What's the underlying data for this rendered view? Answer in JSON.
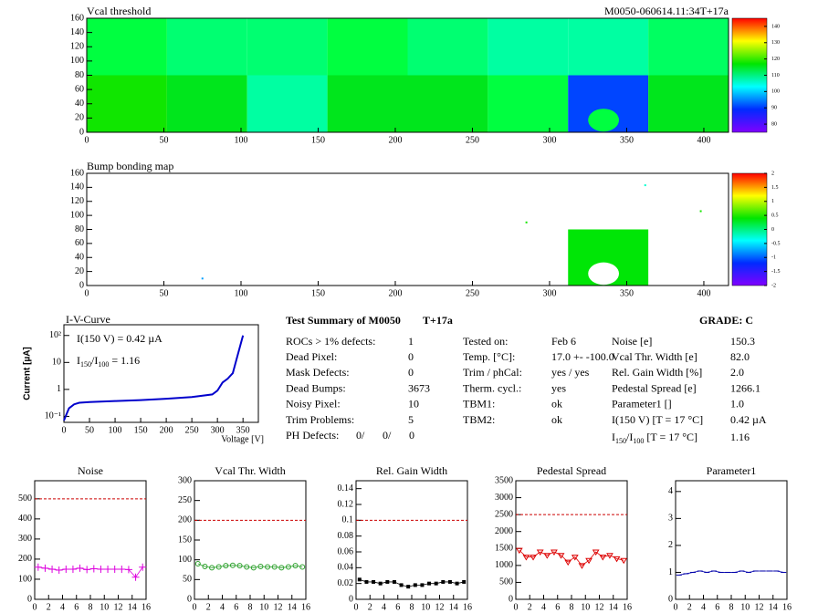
{
  "chart_data": [
    {
      "type": "heatmap",
      "title": "Vcal threshold",
      "subtitle": "M0050-060614.11:34T+17a",
      "xlim": [
        0,
        416
      ],
      "ylim": [
        0,
        160
      ],
      "xticks": [
        0,
        50,
        100,
        150,
        200,
        250,
        300,
        350,
        400
      ],
      "yticks": [
        0,
        20,
        40,
        60,
        80,
        100,
        120,
        140,
        160
      ],
      "zlim": [
        75,
        145
      ],
      "zticks": [
        80,
        90,
        100,
        110,
        120,
        130,
        140
      ],
      "blocks": [
        {
          "x": [
            0,
            52
          ],
          "y": [
            80,
            160
          ],
          "value": 110
        },
        {
          "x": [
            52,
            104
          ],
          "y": [
            80,
            160
          ],
          "value": 107
        },
        {
          "x": [
            104,
            156
          ],
          "y": [
            80,
            160
          ],
          "value": 107
        },
        {
          "x": [
            156,
            208
          ],
          "y": [
            80,
            160
          ],
          "value": 110
        },
        {
          "x": [
            208,
            260
          ],
          "y": [
            80,
            160
          ],
          "value": 107
        },
        {
          "x": [
            260,
            312
          ],
          "y": [
            80,
            160
          ],
          "value": 104
        },
        {
          "x": [
            312,
            364
          ],
          "y": [
            80,
            160
          ],
          "value": 104
        },
        {
          "x": [
            364,
            416
          ],
          "y": [
            80,
            160
          ],
          "value": 108
        },
        {
          "x": [
            0,
            52
          ],
          "y": [
            0,
            80
          ],
          "value": 115
        },
        {
          "x": [
            52,
            104
          ],
          "y": [
            0,
            80
          ],
          "value": 112
        },
        {
          "x": [
            104,
            156
          ],
          "y": [
            0,
            80
          ],
          "value": 104
        },
        {
          "x": [
            156,
            208
          ],
          "y": [
            0,
            80
          ],
          "value": 112
        },
        {
          "x": [
            208,
            260
          ],
          "y": [
            0,
            80
          ],
          "value": 112
        },
        {
          "x": [
            260,
            312
          ],
          "y": [
            0,
            80
          ],
          "value": 110
        },
        {
          "x": [
            312,
            364
          ],
          "y": [
            0,
            80
          ],
          "value": 87
        },
        {
          "x": [
            364,
            416
          ],
          "y": [
            0,
            80
          ],
          "value": 112
        }
      ],
      "spots": [
        {
          "x": 335,
          "y": 17,
          "r": [
            10,
            16
          ],
          "value": 110
        }
      ],
      "points": []
    },
    {
      "type": "heatmap",
      "title": "Bump bonding map",
      "xlim": [
        0,
        416
      ],
      "ylim": [
        0,
        160
      ],
      "xticks": [
        0,
        50,
        100,
        150,
        200,
        250,
        300,
        350,
        400
      ],
      "yticks": [
        0,
        20,
        40,
        60,
        80,
        100,
        120,
        140,
        160
      ],
      "zlim": [
        -2,
        2
      ],
      "zticks": [
        -2,
        -1.5,
        -1,
        -0.5,
        0,
        0.5,
        1,
        1.5,
        2
      ],
      "blocks": [
        {
          "x": [
            312,
            364
          ],
          "y": [
            0,
            80
          ],
          "value": 0.2
        }
      ],
      "spots": [
        {
          "x": 335,
          "y": 17,
          "r": [
            10,
            16
          ],
          "value": null
        }
      ],
      "points": [
        {
          "x": 75,
          "y": 10,
          "value": -1
        },
        {
          "x": 285,
          "y": 90,
          "value": 0.3
        },
        {
          "x": 362,
          "y": 143,
          "value": -0.5
        },
        {
          "x": 398,
          "y": 106,
          "value": 0.3
        }
      ]
    },
    {
      "type": "line",
      "title": "I-V-Curve",
      "x_label": "Voltage [V]",
      "y_label": "Current [µA]",
      "log_y": true,
      "annotation": "I(150 V) = 0.42 µA",
      "ratio_label": [
        "I",
        "150",
        "/I",
        "100",
        " =  1.16"
      ],
      "xlim": [
        0,
        380
      ],
      "ylim": [
        0.06,
        250
      ],
      "xticks": [
        0,
        50,
        100,
        150,
        200,
        250,
        300,
        350
      ],
      "yticks": [
        {
          "value": 0.1,
          "label": "10⁻¹"
        },
        1,
        10,
        {
          "value": 100,
          "label": "10²"
        }
      ],
      "color": "#0000cc",
      "x": [
        0,
        5,
        10,
        20,
        30,
        50,
        100,
        150,
        200,
        250,
        290,
        300,
        310,
        320,
        330,
        340,
        350
      ],
      "values": [
        0.07,
        0.12,
        0.2,
        0.28,
        0.32,
        0.34,
        0.37,
        0.4,
        0.45,
        0.52,
        0.65,
        0.9,
        1.8,
        2.5,
        4,
        20,
        100
      ]
    },
    {
      "type": "small",
      "title": "Noise",
      "marker": "plus",
      "color": "#dd00dd",
      "threshold": 500,
      "xlim": [
        0,
        16
      ],
      "ylim": [
        0,
        590
      ],
      "xticks": [
        0,
        2,
        4,
        6,
        8,
        10,
        12,
        14,
        16
      ],
      "yticks": [
        0,
        100,
        200,
        300,
        400,
        500
      ],
      "x": [
        0.5,
        1.5,
        2.5,
        3.5,
        4.5,
        5.5,
        6.5,
        7.5,
        8.5,
        9.5,
        10.5,
        11.5,
        12.5,
        13.5,
        14.5,
        15.5
      ],
      "values": [
        160,
        155,
        150,
        145,
        150,
        150,
        155,
        148,
        152,
        150,
        150,
        150,
        150,
        148,
        110,
        160
      ]
    },
    {
      "type": "small",
      "title": "Vcal Thr. Width",
      "marker": "circle",
      "color": "#2ca02c",
      "threshold": 200,
      "xlim": [
        0,
        16
      ],
      "ylim": [
        0,
        300
      ],
      "xticks": [
        0,
        2,
        4,
        6,
        8,
        10,
        12,
        14,
        16
      ],
      "yticks": [
        0,
        50,
        100,
        150,
        200,
        250,
        300
      ],
      "x": [
        0.5,
        1.5,
        2.5,
        3.5,
        4.5,
        5.5,
        6.5,
        7.5,
        8.5,
        9.5,
        10.5,
        11.5,
        12.5,
        13.5,
        14.5,
        15.5
      ],
      "values": [
        90,
        83,
        80,
        82,
        85,
        86,
        85,
        82,
        80,
        83,
        82,
        82,
        80,
        82,
        85,
        82
      ]
    },
    {
      "type": "small",
      "title": "Rel. Gain Width",
      "marker": "square",
      "color": "#000000",
      "threshold": 0.1,
      "xlim": [
        0,
        16
      ],
      "ylim": [
        0,
        0.15
      ],
      "xticks": [
        0,
        2,
        4,
        6,
        8,
        10,
        12,
        14,
        16
      ],
      "yticks": [
        0,
        0.02,
        0.04,
        0.06,
        0.08,
        0.1,
        0.12,
        0.14
      ],
      "x": [
        0.5,
        1.5,
        2.5,
        3.5,
        4.5,
        5.5,
        6.5,
        7.5,
        8.5,
        9.5,
        10.5,
        11.5,
        12.5,
        13.5,
        14.5,
        15.5
      ],
      "values": [
        0.025,
        0.022,
        0.022,
        0.02,
        0.022,
        0.022,
        0.018,
        0.016,
        0.018,
        0.018,
        0.02,
        0.02,
        0.022,
        0.022,
        0.02,
        0.022
      ]
    },
    {
      "type": "small",
      "title": "Pedestal Spread",
      "marker": "triangle",
      "color": "#dd0000",
      "threshold": 2500,
      "xlim": [
        0,
        16
      ],
      "ylim": [
        0,
        3500
      ],
      "xticks": [
        0,
        2,
        4,
        6,
        8,
        10,
        12,
        14,
        16
      ],
      "yticks": [
        0,
        500,
        1000,
        1500,
        2000,
        2500,
        3000,
        3500
      ],
      "x": [
        0.5,
        1.5,
        2.5,
        3.5,
        4.5,
        5.5,
        6.5,
        7.5,
        8.5,
        9.5,
        10.5,
        11.5,
        12.5,
        13.5,
        14.5,
        15.5
      ],
      "values": [
        1450,
        1250,
        1250,
        1400,
        1300,
        1400,
        1300,
        1100,
        1250,
        1000,
        1150,
        1400,
        1250,
        1300,
        1200,
        1150
      ]
    },
    {
      "type": "small",
      "title": "Parameter1",
      "marker": "dash",
      "color": "#0000aa",
      "xlim": [
        0,
        16
      ],
      "ylim": [
        0,
        4.4
      ],
      "xticks": [
        0,
        2,
        4,
        6,
        8,
        10,
        12,
        14,
        16
      ],
      "yticks": [
        0,
        1,
        2,
        3,
        4
      ],
      "x": [
        0.5,
        1.5,
        2.5,
        3.5,
        4.5,
        5.5,
        6.5,
        7.5,
        8.5,
        9.5,
        10.5,
        11.5,
        12.5,
        13.5,
        14.5,
        15.5
      ],
      "values": [
        0.9,
        0.95,
        1.0,
        1.05,
        1.0,
        1.05,
        1.0,
        1.0,
        1.0,
        1.05,
        1.0,
        1.05,
        1.05,
        1.05,
        1.05,
        1.0
      ]
    }
  ],
  "summary": {
    "title": "Test Summary of M0050",
    "tag": "T+17a",
    "grade": "GRADE:  C",
    "col1": [
      [
        "ROCs > 1% defects:",
        "1"
      ],
      [
        "Dead Pixel:",
        "0"
      ],
      [
        "Mask Defects:",
        "0"
      ],
      [
        "Dead Bumps:",
        "3673"
      ],
      [
        "Noisy Pixel:",
        "10"
      ],
      [
        "Trim Problems:",
        "5"
      ]
    ],
    "ph_label": "PH Defects:",
    "ph_values": [
      "0/",
      "0/",
      "0"
    ],
    "ph_colors": [
      "#000000",
      "#dd0000",
      "#0000cc"
    ],
    "col2": [
      [
        "Tested on:",
        "Feb 6"
      ],
      [
        "Temp. [°C]:",
        "17.0 +- -100.0"
      ],
      [
        "Trim / phCal:",
        "yes / yes"
      ],
      [
        "Therm. cycl.:",
        "yes"
      ],
      [
        "TBM1:",
        "ok"
      ],
      [
        "TBM2:",
        "ok"
      ]
    ],
    "col3": [
      [
        "Noise [e]",
        "150.3"
      ],
      [
        "Vcal Thr. Width [e]",
        "82.0"
      ],
      [
        "Rel. Gain Width [%]",
        "2.0"
      ],
      [
        "Pedestal Spread [e]",
        "1266.1"
      ],
      [
        "Parameter1 []",
        "1.0"
      ],
      [
        "I(150 V) [T = 17 °C]",
        "0.42 µA"
      ]
    ],
    "ratio_row": {
      "label": [
        "I",
        "150",
        "/I",
        "100",
        " [T = 17 °C]"
      ],
      "value": "1.16"
    }
  }
}
